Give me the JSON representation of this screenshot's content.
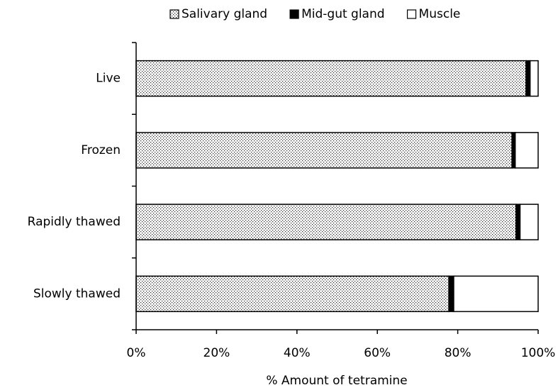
{
  "chart_data": {
    "type": "stacked-bar-horizontal",
    "x_label": "% Amount of tetramine",
    "categories": [
      "Live",
      "Frozen",
      "Rapidly thawed",
      "Slowly thawed"
    ],
    "series": [
      {
        "name": "Salivary gland",
        "color": "#ffffff",
        "pattern": "dots",
        "values": [
          97,
          93.5,
          94.5,
          77.8
        ]
      },
      {
        "name": "Mid-gut gland",
        "color": "#000000",
        "values": [
          1,
          0.8,
          1,
          1.2
        ]
      },
      {
        "name": "Muscle",
        "color": "#ffffff",
        "values": [
          2,
          5.7,
          4.5,
          21
        ]
      }
    ],
    "xlim": [
      0,
      100
    ],
    "xticks": [
      {
        "value": 0,
        "label": "0%"
      },
      {
        "value": 20,
        "label": "20%"
      },
      {
        "value": 40,
        "label": "40%"
      },
      {
        "value": 60,
        "label": "60%"
      },
      {
        "value": 80,
        "label": "80%"
      },
      {
        "value": 100,
        "label": "100%"
      }
    ],
    "legend_position": "top"
  }
}
